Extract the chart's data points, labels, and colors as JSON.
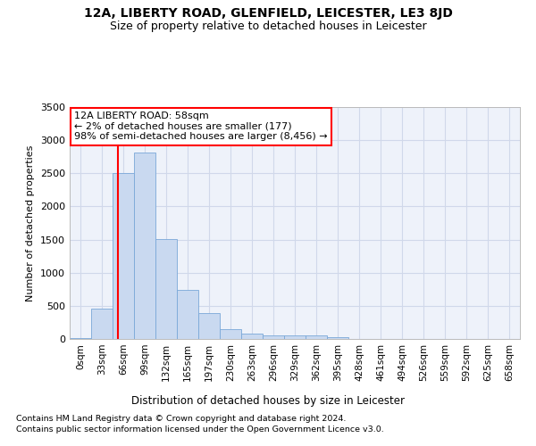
{
  "title1": "12A, LIBERTY ROAD, GLENFIELD, LEICESTER, LE3 8JD",
  "title2": "Size of property relative to detached houses in Leicester",
  "xlabel": "Distribution of detached houses by size in Leicester",
  "ylabel": "Number of detached properties",
  "bar_labels": [
    "0sqm",
    "33sqm",
    "66sqm",
    "99sqm",
    "132sqm",
    "165sqm",
    "197sqm",
    "230sqm",
    "263sqm",
    "296sqm",
    "329sqm",
    "362sqm",
    "395sqm",
    "428sqm",
    "461sqm",
    "494sqm",
    "526sqm",
    "559sqm",
    "592sqm",
    "625sqm",
    "658sqm"
  ],
  "bar_values": [
    20,
    460,
    2510,
    2820,
    1510,
    745,
    390,
    145,
    75,
    55,
    55,
    50,
    25,
    0,
    0,
    0,
    0,
    0,
    0,
    0,
    0
  ],
  "bar_color": "#c9d9f0",
  "bar_edge_color": "#7aa8d8",
  "grid_color": "#d0d8ea",
  "bg_color": "#eef2fa",
  "annotation_box_text": "12A LIBERTY ROAD: 58sqm\n← 2% of detached houses are smaller (177)\n98% of semi-detached houses are larger (8,456) →",
  "footnote1": "Contains HM Land Registry data © Crown copyright and database right 2024.",
  "footnote2": "Contains public sector information licensed under the Open Government Licence v3.0.",
  "ylim": [
    0,
    3500
  ],
  "yticks": [
    0,
    500,
    1000,
    1500,
    2000,
    2500,
    3000,
    3500
  ]
}
